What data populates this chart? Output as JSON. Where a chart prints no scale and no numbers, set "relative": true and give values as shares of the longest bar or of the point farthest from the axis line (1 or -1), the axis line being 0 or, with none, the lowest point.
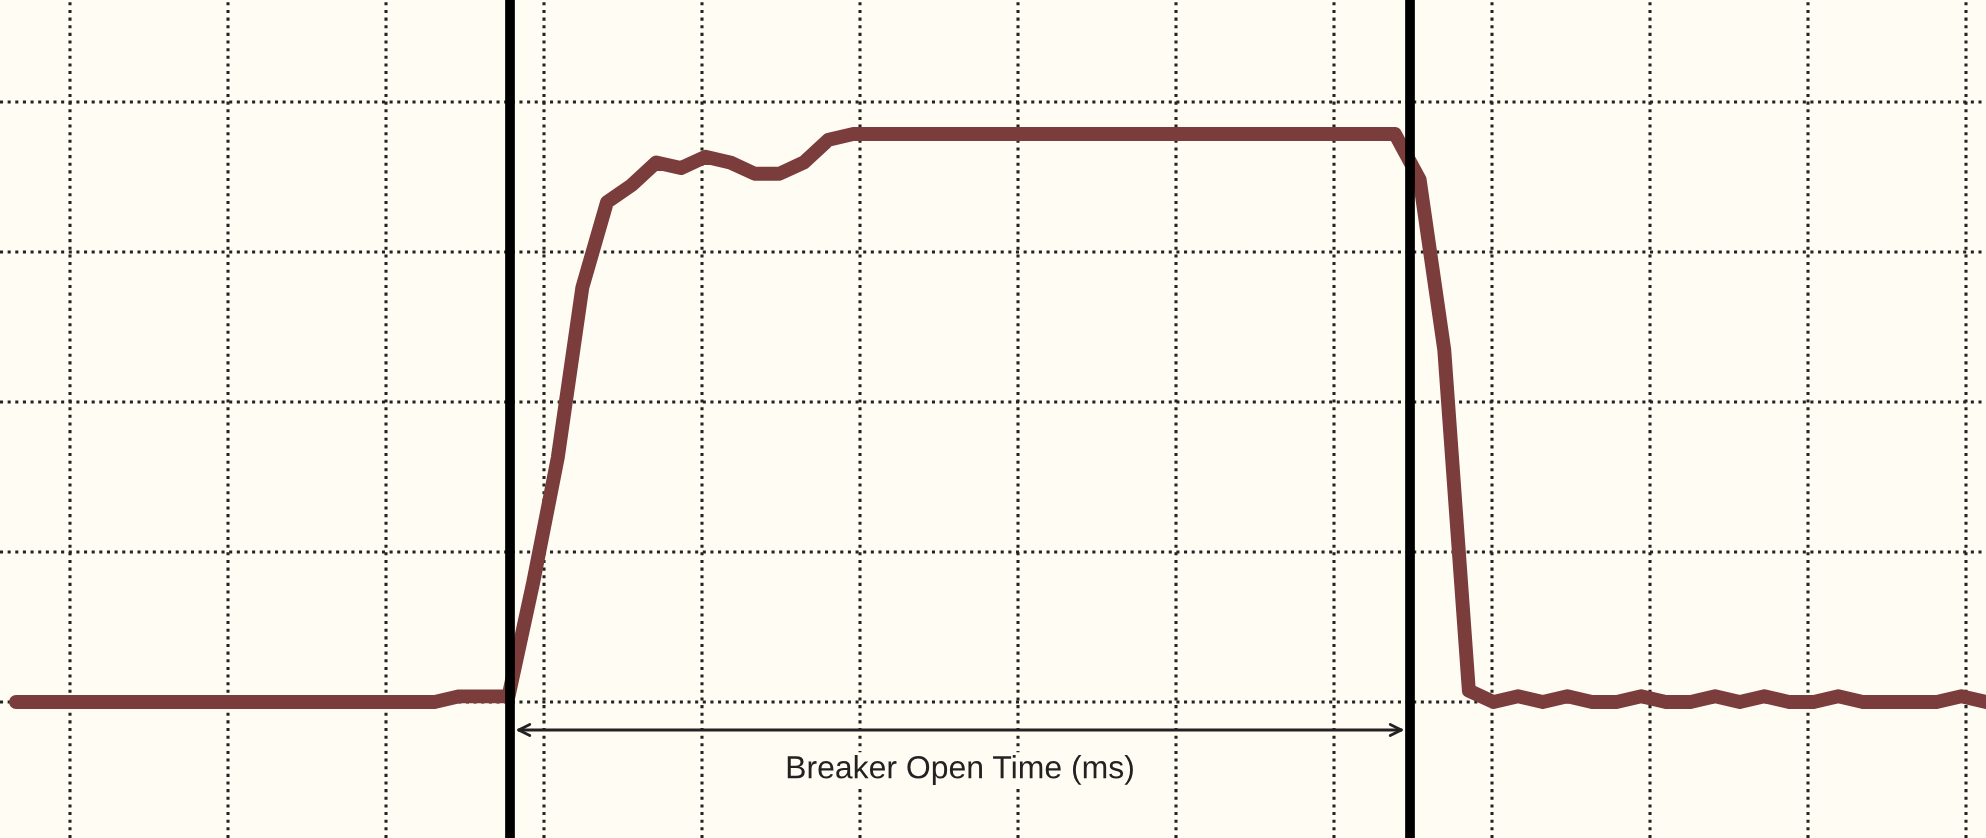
{
  "chart_data": {
    "type": "line",
    "relative": true,
    "grid": true,
    "categories": [
      null,
      null,
      null,
      null,
      null,
      null,
      null,
      null,
      null,
      null,
      null,
      null,
      null,
      null,
      null,
      null,
      null,
      null,
      null,
      null,
      null,
      null,
      null,
      null,
      null,
      null,
      null,
      null,
      null,
      null,
      null,
      null,
      null,
      null,
      null,
      null,
      null,
      null,
      null,
      null,
      null,
      null,
      null,
      null,
      null,
      null,
      null,
      null,
      null,
      null,
      null,
      null,
      null,
      null,
      null,
      null,
      null,
      null,
      null,
      null,
      null,
      null,
      null,
      null,
      null,
      null,
      null,
      null,
      null,
      null,
      null,
      null,
      null,
      null,
      null,
      null,
      null,
      null,
      null,
      null,
      null
    ],
    "series": [
      {
        "color": "#7b3c3c",
        "values": [
          0,
          0,
          0,
          0,
          0,
          0,
          0,
          0,
          0,
          0,
          0,
          0,
          0,
          0,
          0,
          0,
          0,
          0,
          0.01,
          0.01,
          0.01,
          0.21,
          0.43,
          0.73,
          0.88,
          0.91,
          0.95,
          0.94,
          0.96,
          0.95,
          0.93,
          0.93,
          0.95,
          0.99,
          1,
          1,
          1,
          1,
          1,
          1,
          1,
          1,
          1,
          1,
          1,
          1,
          1,
          1,
          1,
          1,
          1,
          1,
          1,
          1,
          1,
          1,
          1,
          0.92,
          0.62,
          0.02,
          0,
          0.01,
          0,
          0.01,
          0,
          0,
          0.01,
          0,
          0,
          0.01,
          0,
          0.01,
          0,
          0,
          0.01,
          0,
          0,
          0,
          0,
          0.01,
          0
        ]
      }
    ],
    "annotations": [
      "Breaker Open Time (ms)"
    ]
  }
}
